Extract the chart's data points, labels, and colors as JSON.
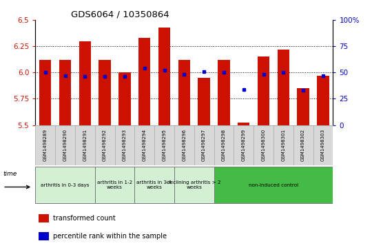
{
  "title": "GDS6064 / 10350864",
  "samples": [
    "GSM1498289",
    "GSM1498290",
    "GSM1498291",
    "GSM1498292",
    "GSM1498293",
    "GSM1498294",
    "GSM1498295",
    "GSM1498296",
    "GSM1498297",
    "GSM1498298",
    "GSM1498299",
    "GSM1498300",
    "GSM1498301",
    "GSM1498302",
    "GSM1498303"
  ],
  "transformed_count": [
    6.12,
    6.12,
    6.3,
    6.12,
    6.0,
    6.33,
    6.43,
    6.12,
    5.95,
    6.12,
    5.52,
    6.15,
    6.22,
    5.85,
    5.97
  ],
  "percentile_rank": [
    50,
    47,
    46,
    46,
    46,
    54,
    52,
    48,
    51,
    50,
    34,
    48,
    50,
    33,
    47
  ],
  "groups2": [
    {
      "label": "arthritis in 0-3 days",
      "indices": [
        0,
        1,
        2
      ],
      "color": "#d4f0d4"
    },
    {
      "label": "arthritis in 1-2\nweeks",
      "indices": [
        3,
        4
      ],
      "color": "#d4f0d4"
    },
    {
      "label": "arthritis in 3-4\nweeks",
      "indices": [
        5,
        6
      ],
      "color": "#d4f0d4"
    },
    {
      "label": "declining arthritis > 2\nweeks",
      "indices": [
        7,
        8
      ],
      "color": "#d4f0d4"
    },
    {
      "label": "non-induced control",
      "indices": [
        9,
        10,
        11,
        12,
        13,
        14
      ],
      "color": "#44bb44"
    }
  ],
  "ylim": [
    5.5,
    6.5
  ],
  "yticks": [
    5.5,
    5.75,
    6.0,
    6.25,
    6.5
  ],
  "y2lim": [
    0,
    100
  ],
  "y2ticks": [
    0,
    25,
    50,
    75,
    100
  ],
  "bar_color": "#cc1100",
  "dot_color": "#0000cc",
  "bar_bottom": 5.5,
  "grid_lines": [
    5.75,
    6.0,
    6.25
  ]
}
